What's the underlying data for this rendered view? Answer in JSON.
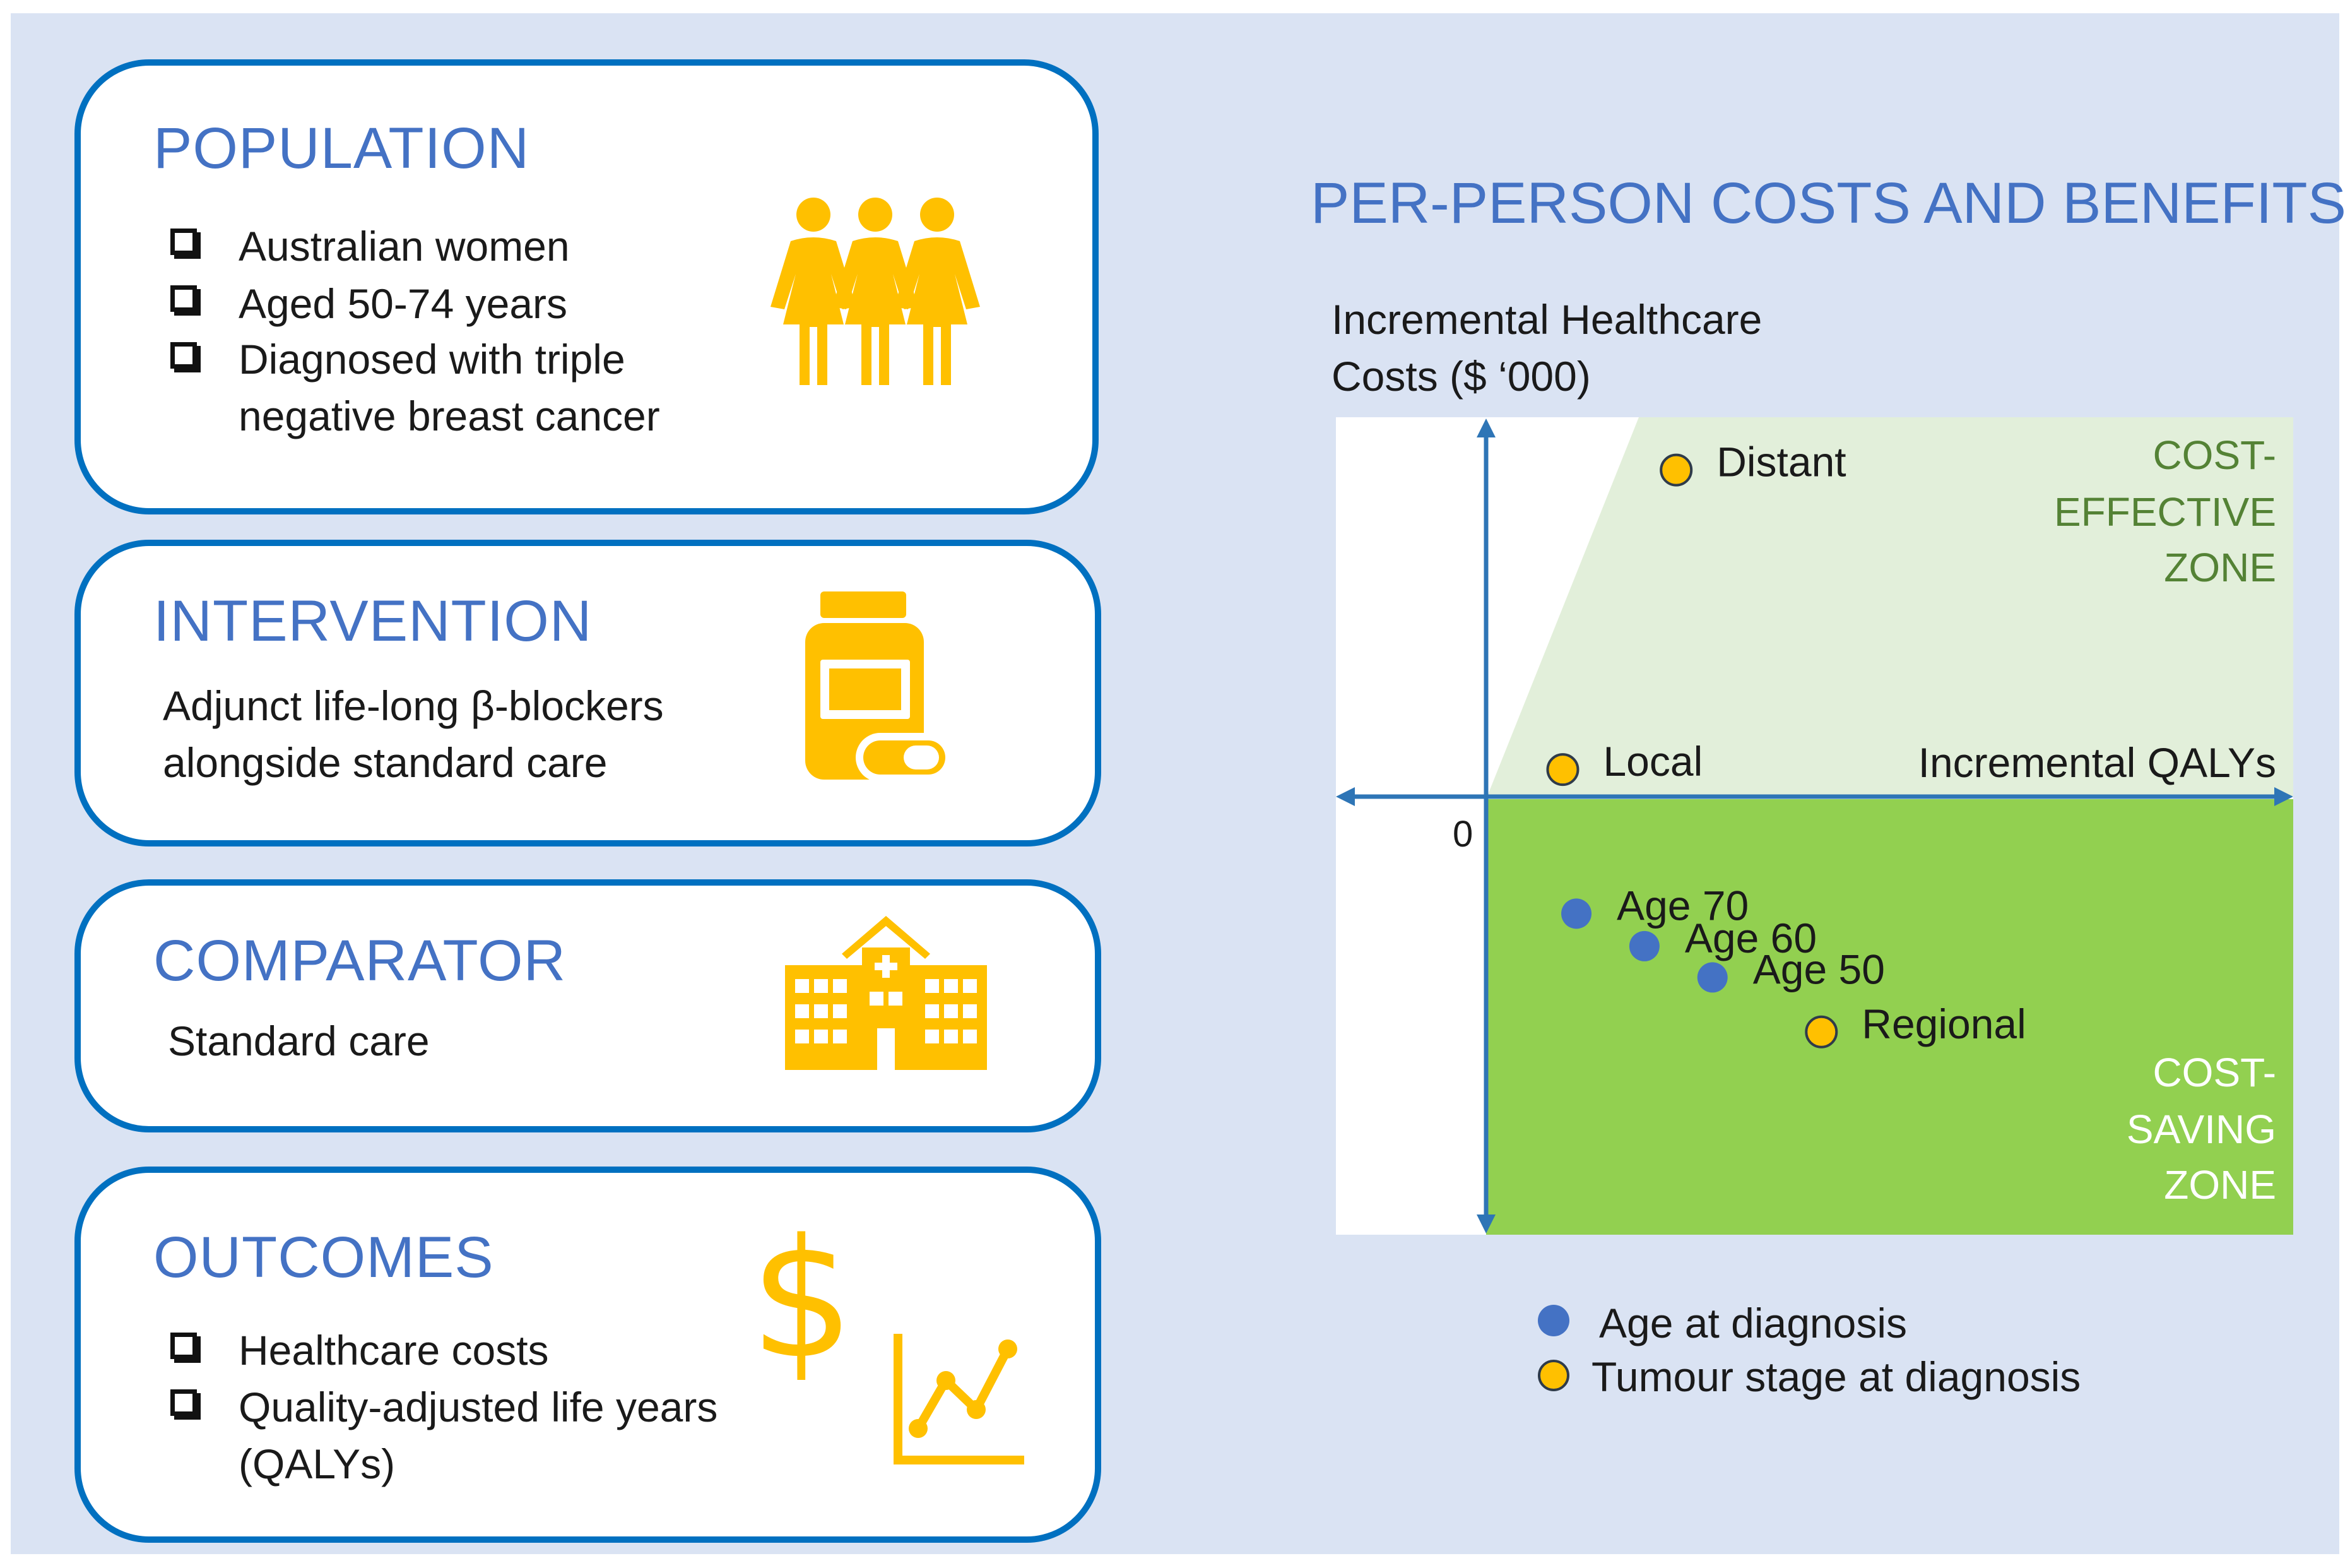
{
  "population": {
    "title": "POPULATION",
    "items": [
      "Australian women",
      "Aged 50-74 years",
      "Diagnosed with triple"
    ],
    "item_continuation": "negative breast cancer",
    "icon": "people-icon"
  },
  "intervention": {
    "title": "INTERVENTION",
    "lines": [
      "Adjunct life-long β-blockers",
      "alongside standard care"
    ],
    "icon": "medicine-bottle-icon"
  },
  "comparator": {
    "title": "COMPARATOR",
    "lines": [
      "Standard care"
    ],
    "icon": "hospital-icon"
  },
  "outcomes": {
    "title": "OUTCOMES",
    "items": [
      "Healthcare costs",
      "Quality-adjusted life years"
    ],
    "item_continuation": "(QALYs)",
    "icons": [
      "dollar-icon",
      "line-chart-icon"
    ]
  },
  "colors": {
    "border": "#0070c0",
    "title": "#4472c4",
    "icon_gold": "#ffc000",
    "background": "#dae3f3",
    "effective_zone": "#e2efda",
    "saving_zone": "#92d050",
    "age_dot": "#4472c4",
    "stage_dot": "#ffc000"
  },
  "chart_data": {
    "type": "scatter",
    "title": "PER-PERSON COSTS AND BENEFITS",
    "ylabel": "Incremental Healthcare",
    "ylabel_line2": "Costs ($ ‘000)",
    "xlabel": "Incremental QALYs",
    "origin_label": "0",
    "zones": {
      "effective": [
        "COST-",
        "EFFECTIVE",
        "ZONE"
      ],
      "saving": [
        "COST-",
        "SAVING",
        "ZONE"
      ]
    },
    "series": [
      {
        "name": "Age at diagnosis",
        "points": [
          {
            "label": "Age 70",
            "x": 0.2,
            "y": -1.85
          },
          {
            "label": "Age 60",
            "x": 0.35,
            "y": -2.62
          },
          {
            "label": "Age 50",
            "x": 0.5,
            "y": -3.36
          }
        ]
      },
      {
        "name": "Tumour stage at diagnosis",
        "points": [
          {
            "label": "Distant",
            "x": 0.42,
            "y": 8.65
          },
          {
            "label": "Local",
            "x": 0.17,
            "y": 1.56
          },
          {
            "label": "Regional",
            "x": 0.74,
            "y": -4.65
          }
        ]
      }
    ],
    "xlim": [
      -0.33,
      1.78
    ],
    "ylim": [
      -9.45,
      9.9
    ],
    "legend": [
      "Age at diagnosis",
      "Tumour stage at diagnosis"
    ]
  }
}
